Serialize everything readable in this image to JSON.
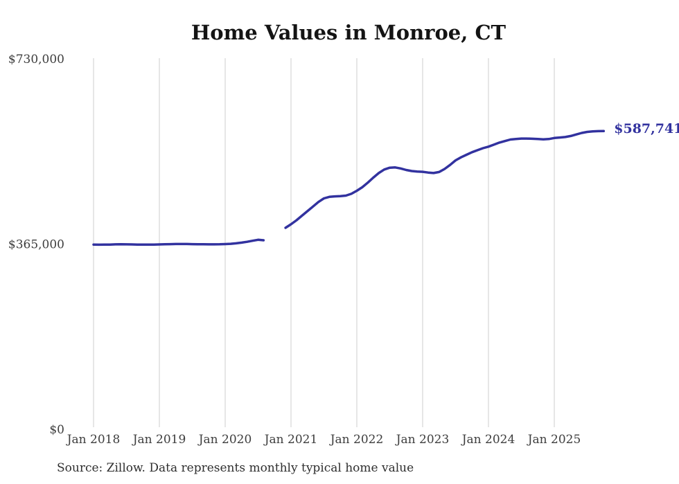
{
  "chart_data": {
    "type": "line",
    "title": "Home Values in Monroe, CT",
    "xlabel": "",
    "ylabel": "",
    "ylim": [
      0,
      730000
    ],
    "grid": "vertical-only",
    "legend": "none",
    "line_color": "#32329f",
    "grid_color": "#cccccc",
    "tick_label_color": "#3d3d3d",
    "x_tick_labels": [
      "Jan 2018",
      "Jan 2019",
      "Jan 2020",
      "Jan 2021",
      "Jan 2022",
      "Jan 2023",
      "Jan 2024",
      "Jan 2025"
    ],
    "y_ticks": [
      {
        "label": "$0",
        "value": 0
      },
      {
        "label": "$365,000",
        "value": 365000
      },
      {
        "label": "$730,000",
        "value": 730000
      }
    ],
    "end_label": "$587,741",
    "end_value": 587741,
    "series": [
      {
        "name": "Monthly typical home value",
        "start_month": "2018-01",
        "end_month": "2025-10",
        "gap_months": [
          "2020-09",
          "2020-10",
          "2020-11"
        ],
        "values": [
          364000,
          363800,
          363900,
          364100,
          364400,
          364600,
          364500,
          364300,
          364100,
          364000,
          364000,
          364100,
          364300,
          364600,
          364900,
          365100,
          365200,
          365100,
          364900,
          364700,
          364600,
          364500,
          364500,
          364600,
          365000,
          365600,
          366500,
          367800,
          369500,
          371500,
          373500,
          372500,
          null,
          null,
          null,
          397000,
          404000,
          412000,
          421000,
          430000,
          439000,
          448000,
          455000,
          458000,
          459000,
          459500,
          460500,
          464000,
          470000,
          477000,
          486000,
          496000,
          505000,
          512000,
          515500,
          516000,
          514000,
          511000,
          509000,
          508000,
          507500,
          506000,
          505000,
          507000,
          513000,
          521000,
          530000,
          536000,
          541000,
          546000,
          550000,
          554000,
          557000,
          561000,
          565000,
          568000,
          571000,
          572000,
          573000,
          573000,
          572500,
          572000,
          571500,
          572000,
          574000,
          575000,
          576000,
          578000,
          581000,
          584000,
          586000,
          587000,
          587500,
          587741
        ]
      }
    ]
  },
  "footer": {
    "source_text": "Source: Zillow. Data represents monthly typical home value"
  }
}
